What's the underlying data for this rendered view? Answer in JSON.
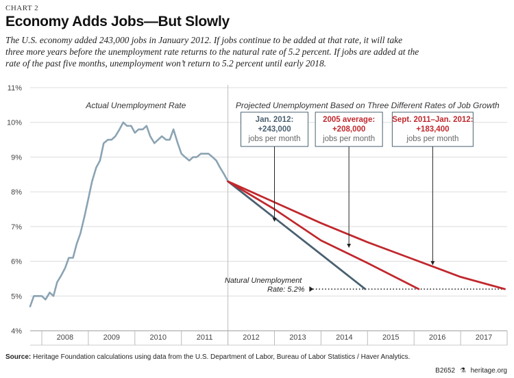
{
  "header": {
    "chart_label": "CHART 2",
    "title": "Economy Adds Jobs—But Slowly",
    "subtitle_lines": [
      "The U.S. economy added 243,000 jobs in January 2012. If jobs continue to be added at that rate, it will take",
      "three more years before the unemployment rate returns to the natural rate of 5.2 percent.  If jobs are added at the",
      "rate of the past five months, unemployment won’t return to 5.2 percent until early 2018."
    ]
  },
  "footer": {
    "source_label": "Source:",
    "source_text": "Heritage Foundation calculations using data from the U.S. Department of Labor, Bureau of Labor Statistics / Haver Analytics.",
    "code": "B2652",
    "site": "heritage.org"
  },
  "colors": {
    "actual": "#8aa3b3",
    "projection_243k": "#4a6070",
    "projection_red": "#c0282d",
    "grid": "#dcdcdc",
    "divider": "#bdbdbd",
    "box_border_dark": "#4a6070"
  },
  "chart_data": {
    "type": "line",
    "ylim": [
      4,
      11
    ],
    "yticks": [
      4,
      5,
      6,
      7,
      8,
      9,
      10,
      11
    ],
    "ytick_labels": [
      "4%",
      "5%",
      "6%",
      "7%",
      "8%",
      "9%",
      "10%",
      "11%"
    ],
    "xlim": [
      2007.75,
      2018.0
    ],
    "x_categories": [
      "2008",
      "2009",
      "2010",
      "2011",
      "2012",
      "2013",
      "2014",
      "2015",
      "2016",
      "2017"
    ],
    "regions": {
      "left_label": "Actual Unemployment Rate",
      "right_label": "Projected Unemployment Based on Three Different Rates of Job Growth",
      "divider_x": 2012.0
    },
    "series": [
      {
        "id": "actual",
        "color_key": "actual",
        "points": [
          [
            2007.75,
            4.7
          ],
          [
            2007.83,
            5.0
          ],
          [
            2007.92,
            5.0
          ],
          [
            2008.0,
            5.0
          ],
          [
            2008.08,
            4.9
          ],
          [
            2008.17,
            5.1
          ],
          [
            2008.25,
            5.0
          ],
          [
            2008.33,
            5.4
          ],
          [
            2008.42,
            5.6
          ],
          [
            2008.5,
            5.8
          ],
          [
            2008.58,
            6.1
          ],
          [
            2008.67,
            6.1
          ],
          [
            2008.75,
            6.5
          ],
          [
            2008.83,
            6.8
          ],
          [
            2008.92,
            7.3
          ],
          [
            2009.0,
            7.8
          ],
          [
            2009.08,
            8.3
          ],
          [
            2009.17,
            8.7
          ],
          [
            2009.25,
            8.9
          ],
          [
            2009.33,
            9.4
          ],
          [
            2009.42,
            9.5
          ],
          [
            2009.5,
            9.5
          ],
          [
            2009.58,
            9.6
          ],
          [
            2009.67,
            9.8
          ],
          [
            2009.75,
            10.0
          ],
          [
            2009.83,
            9.9
          ],
          [
            2009.92,
            9.9
          ],
          [
            2010.0,
            9.7
          ],
          [
            2010.08,
            9.8
          ],
          [
            2010.17,
            9.8
          ],
          [
            2010.25,
            9.9
          ],
          [
            2010.33,
            9.6
          ],
          [
            2010.42,
            9.4
          ],
          [
            2010.5,
            9.5
          ],
          [
            2010.58,
            9.6
          ],
          [
            2010.67,
            9.5
          ],
          [
            2010.75,
            9.5
          ],
          [
            2010.83,
            9.8
          ],
          [
            2010.92,
            9.4
          ],
          [
            2011.0,
            9.1
          ],
          [
            2011.08,
            9.0
          ],
          [
            2011.17,
            8.9
          ],
          [
            2011.25,
            9.0
          ],
          [
            2011.33,
            9.0
          ],
          [
            2011.42,
            9.1
          ],
          [
            2011.5,
            9.1
          ],
          [
            2011.58,
            9.1
          ],
          [
            2011.67,
            9.0
          ],
          [
            2011.75,
            8.9
          ],
          [
            2011.83,
            8.7
          ],
          [
            2011.92,
            8.5
          ],
          [
            2012.0,
            8.3
          ]
        ]
      },
      {
        "id": "jan2012",
        "color_key": "projection_243k",
        "label_lines": [
          "Jan. 2012:",
          "+243,000",
          "jobs per month"
        ],
        "points": [
          [
            2012.0,
            8.3
          ],
          [
            2013.0,
            7.25
          ],
          [
            2014.0,
            6.2
          ],
          [
            2014.95,
            5.2
          ]
        ]
      },
      {
        "id": "avg2005",
        "color_key": "projection_red",
        "label_lines": [
          "2005 average:",
          "+208,000",
          "jobs per month"
        ],
        "points": [
          [
            2012.0,
            8.3
          ],
          [
            2013.0,
            7.5
          ],
          [
            2014.0,
            6.6
          ],
          [
            2015.0,
            5.95
          ],
          [
            2016.1,
            5.2
          ]
        ]
      },
      {
        "id": "sept2011",
        "color_key": "projection_red",
        "label_lines": [
          "Sept. 2011–Jan. 2012:",
          "+183,400",
          "jobs per month"
        ],
        "points": [
          [
            2012.0,
            8.3
          ],
          [
            2013.0,
            7.7
          ],
          [
            2014.0,
            7.1
          ],
          [
            2015.0,
            6.55
          ],
          [
            2016.0,
            6.05
          ],
          [
            2017.0,
            5.55
          ],
          [
            2017.95,
            5.2
          ]
        ]
      }
    ],
    "callouts": [
      {
        "series": "jan2012",
        "box_cx": 2013.0,
        "box_cy": 9.8,
        "arrow_to": [
          2013.0,
          7.15
        ],
        "text_color": "#4a6070",
        "border_color": "#4a6070"
      },
      {
        "series": "avg2005",
        "box_cx": 2014.6,
        "box_cy": 9.8,
        "arrow_to": [
          2014.6,
          6.4
        ],
        "text_color": "#c0282d",
        "border_color": "#4a6070"
      },
      {
        "series": "sept2011",
        "box_cx": 2016.4,
        "box_cy": 9.8,
        "arrow_to": [
          2016.4,
          5.9
        ],
        "text_color": "#c0282d",
        "border_color": "#4a6070"
      }
    ],
    "natural_rate": {
      "value": 5.2,
      "label_lines": [
        "Natural Unemployment",
        "Rate: 5.2%"
      ],
      "line_start_x": 2014.0,
      "line_end_x": 2018.0
    }
  }
}
